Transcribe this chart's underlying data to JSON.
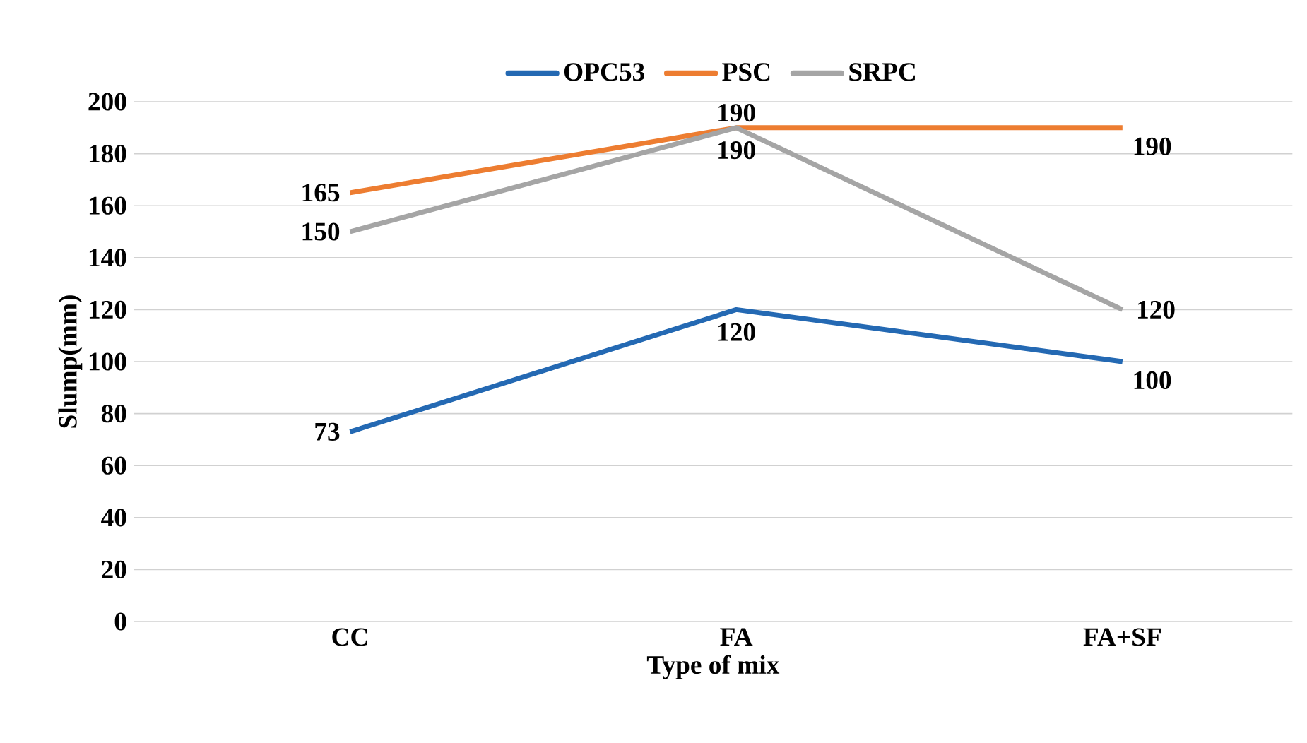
{
  "chart_data": {
    "type": "line",
    "xlabel": "Type of  mix",
    "ylabel": "Slump(mm)",
    "categories": [
      "CC",
      "FA",
      "FA+SF"
    ],
    "series": [
      {
        "name": "OPC53",
        "color": "#2469b3",
        "values": [
          73,
          120,
          100
        ]
      },
      {
        "name": "PSC",
        "color": "#ed7d31",
        "values": [
          165,
          190,
          190
        ]
      },
      {
        "name": "SRPC",
        "color": "#a5a5a5",
        "values": [
          150,
          190,
          120
        ]
      }
    ],
    "ylim": [
      0,
      200
    ],
    "yticks": [
      0,
      20,
      40,
      60,
      80,
      100,
      120,
      140,
      160,
      180,
      200
    ],
    "grid": "y",
    "legend": "top",
    "data_labels": true,
    "marker": "none",
    "line_style": "solid"
  }
}
